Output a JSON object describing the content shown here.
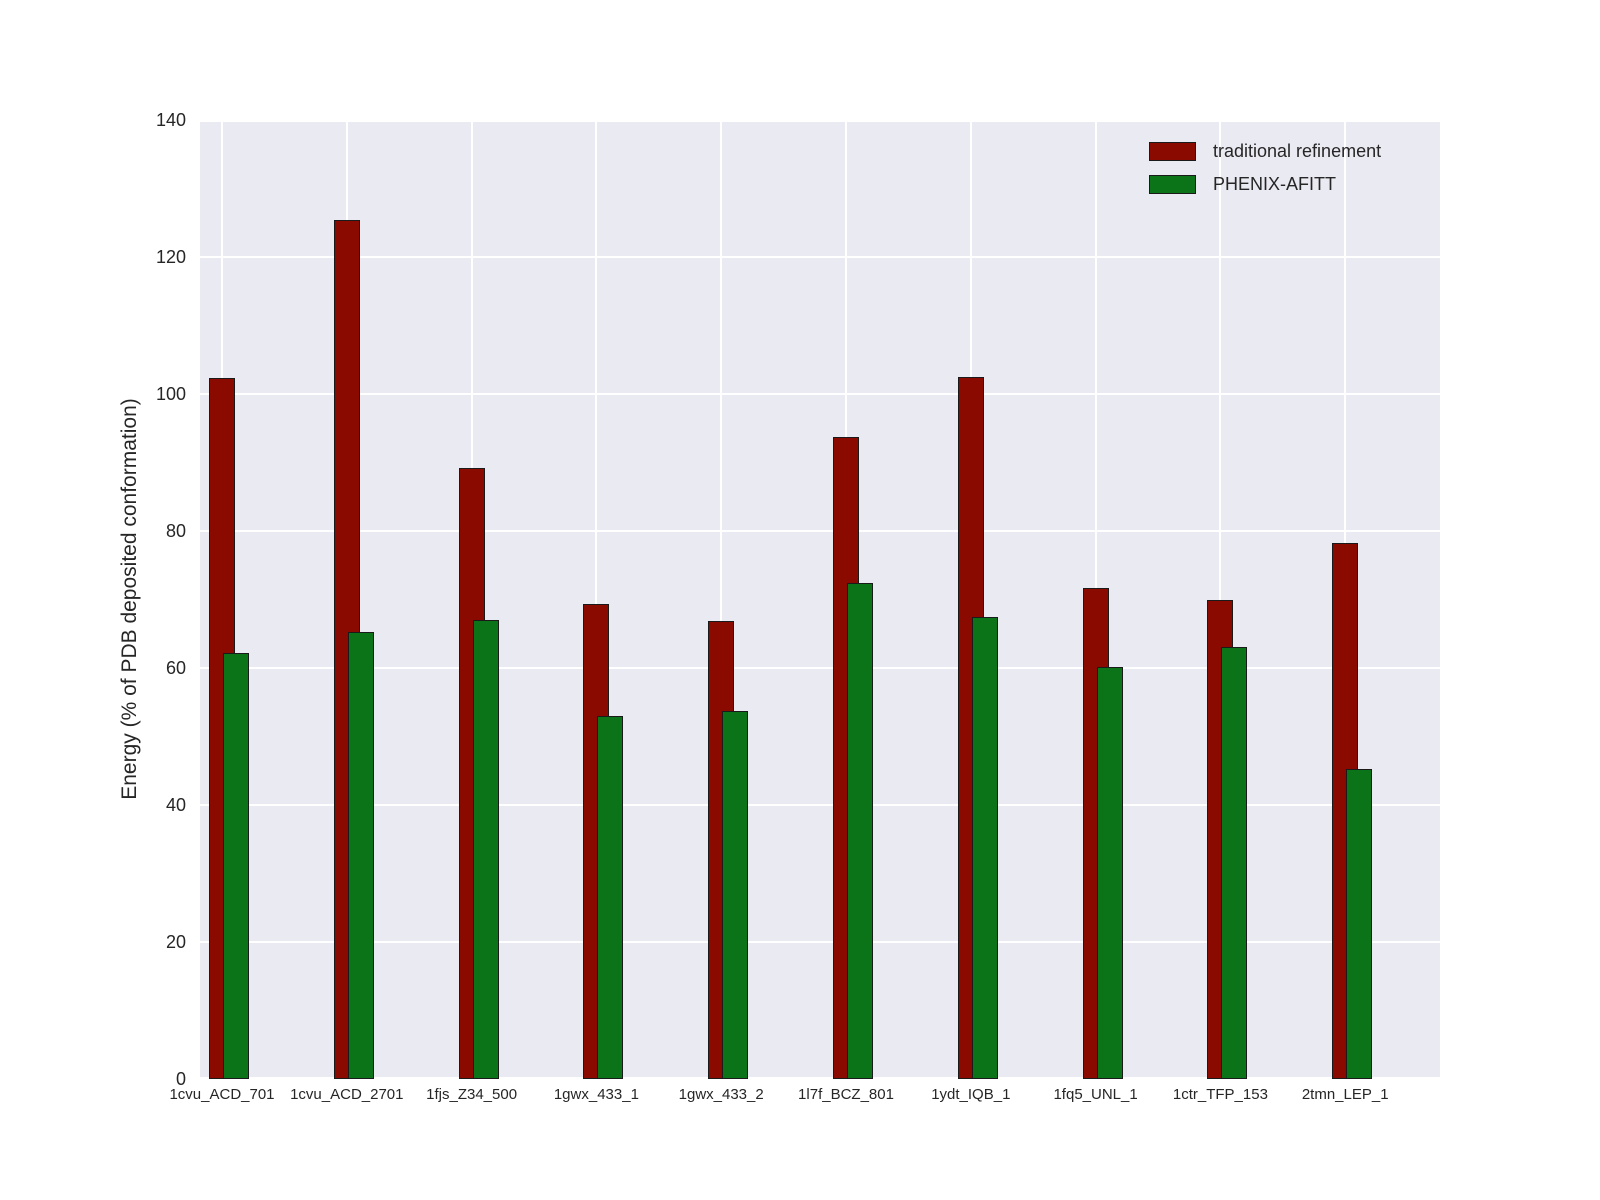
{
  "chart_data": {
    "type": "bar",
    "title": "",
    "xlabel": "",
    "ylabel": "Energy (% of PDB deposited conformation)",
    "ylim": [
      0,
      140
    ],
    "yticks": [
      0,
      20,
      40,
      60,
      80,
      100,
      120,
      140
    ],
    "grid": true,
    "legend_position": "upper right",
    "categories": [
      "1cvu_ACD_701",
      "1cvu_ACD_2701",
      "1fjs_Z34_500",
      "1gwx_433_1",
      "1gwx_433_2",
      "1l7f_BCZ_801",
      "1ydt_IQB_1",
      "1fq5_UNL_1",
      "1ctr_TFP_153",
      "2tmn_LEP_1"
    ],
    "series": [
      {
        "name": "traditional refinement",
        "color": "#8b0a00",
        "values": [
          102.4,
          125.4,
          89.2,
          69.3,
          66.8,
          93.7,
          102.5,
          71.7,
          69.9,
          78.3
        ]
      },
      {
        "name": "PHENIX-AFITT",
        "color": "#0b7418",
        "values": [
          62.2,
          65.2,
          67.0,
          53.0,
          53.7,
          72.4,
          67.5,
          60.2,
          63.0,
          45.2
        ]
      }
    ],
    "bar_edge_color": "#1a1a1a",
    "plot_background": "#eaeaf2",
    "grid_color": "#ffffff"
  }
}
